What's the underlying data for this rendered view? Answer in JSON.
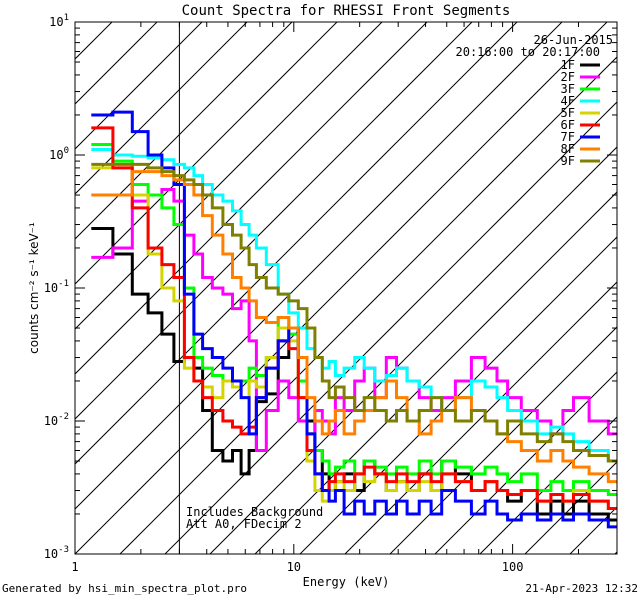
{
  "chart_data": {
    "type": "line",
    "title": "Count Spectra for RHESSI Front Segments",
    "xlabel": "Energy (keV)",
    "ylabel": "counts cm⁻² s⁻¹ keV⁻¹",
    "xscale": "log",
    "yscale": "log",
    "xlim": [
      1.0,
      300.0
    ],
    "ylim": [
      0.001,
      10.0
    ],
    "x_tick_labels": [
      {
        "value": 1,
        "label": "1"
      },
      {
        "value": 10,
        "label": "10"
      },
      {
        "value": 100,
        "label": "100"
      }
    ],
    "y_tick_labels": [
      {
        "value": 0.001,
        "base": "10",
        "exp": "-3"
      },
      {
        "value": 0.01,
        "base": "10",
        "exp": "-2"
      },
      {
        "value": 0.1,
        "base": "10",
        "exp": "-1"
      },
      {
        "value": 1,
        "base": "10",
        "exp": "0"
      },
      {
        "value": 10,
        "base": "10",
        "exp": "1"
      }
    ],
    "date": "26-Jun-2015",
    "time_range": "20:16:00 to 20:17:00",
    "annotation_lines": [
      "Includes Background",
      "Att A0, FDecim 2"
    ],
    "excluded_region": {
      "from": 1.0,
      "to": 3.0
    },
    "energy_bins": [
      1.33,
      1.67,
      2.0,
      2.33,
      2.67,
      3.0,
      3.33,
      3.67,
      4.0,
      4.5,
      5.0,
      5.5,
      6.0,
      6.5,
      7.0,
      8.0,
      9.0,
      10.0,
      11.0,
      12.0,
      13.0,
      14.0,
      15.0,
      16.0,
      18.0,
      20.0,
      22.0,
      25.0,
      28.0,
      31.0,
      35.0,
      40.0,
      45.0,
      50.0,
      60.0,
      70.0,
      80.0,
      90.0,
      100.0,
      120.0,
      140.0,
      160.0,
      180.0,
      200.0,
      250.0,
      300.0
    ],
    "series": [
      {
        "name": "1F",
        "color": "#000000",
        "values": [
          0.28,
          0.18,
          0.09,
          0.065,
          0.045,
          0.028,
          0.03,
          0.025,
          0.012,
          0.006,
          0.005,
          0.006,
          0.004,
          0.006,
          0.014,
          0.016,
          0.03,
          0.05,
          0.03,
          0.01,
          0.006,
          0.004,
          0.003,
          0.0035,
          0.004,
          0.003,
          0.005,
          0.004,
          0.003,
          0.0035,
          0.003,
          0.004,
          0.003,
          0.005,
          0.004,
          0.003,
          0.0035,
          0.003,
          0.0025,
          0.003,
          0.002,
          0.0025,
          0.002,
          0.0025,
          0.002,
          0.0018
        ]
      },
      {
        "name": "2F",
        "color": "#ff00ff",
        "values": [
          0.17,
          0.2,
          0.45,
          0.5,
          0.55,
          0.45,
          0.25,
          0.18,
          0.12,
          0.1,
          0.09,
          0.07,
          0.08,
          0.04,
          0.006,
          0.012,
          0.02,
          0.015,
          0.01,
          0.008,
          0.012,
          0.01,
          0.008,
          0.015,
          0.012,
          0.02,
          0.025,
          0.015,
          0.03,
          0.025,
          0.02,
          0.015,
          0.012,
          0.015,
          0.02,
          0.03,
          0.025,
          0.02,
          0.015,
          0.012,
          0.01,
          0.008,
          0.012,
          0.015,
          0.01,
          0.008
        ]
      },
      {
        "name": "3F",
        "color": "#00ff00",
        "values": [
          1.2,
          0.9,
          0.6,
          0.5,
          0.4,
          0.3,
          0.1,
          0.03,
          0.025,
          0.022,
          0.02,
          0.018,
          0.02,
          0.025,
          0.022,
          0.03,
          0.06,
          0.045,
          0.02,
          0.008,
          0.006,
          0.005,
          0.004,
          0.0045,
          0.005,
          0.004,
          0.005,
          0.0045,
          0.004,
          0.0045,
          0.004,
          0.005,
          0.004,
          0.005,
          0.0045,
          0.004,
          0.0045,
          0.004,
          0.0035,
          0.004,
          0.003,
          0.0035,
          0.003,
          0.0035,
          0.003,
          0.0028
        ]
      },
      {
        "name": "4F",
        "color": "#00ffff",
        "values": [
          1.1,
          1.0,
          0.98,
          0.95,
          0.92,
          0.85,
          0.8,
          0.7,
          0.6,
          0.5,
          0.45,
          0.38,
          0.3,
          0.25,
          0.2,
          0.15,
          0.09,
          0.065,
          0.05,
          0.035,
          0.03,
          0.025,
          0.028,
          0.022,
          0.025,
          0.03,
          0.025,
          0.02,
          0.022,
          0.025,
          0.02,
          0.018,
          0.015,
          0.012,
          0.015,
          0.02,
          0.018,
          0.015,
          0.012,
          0.01,
          0.008,
          0.009,
          0.008,
          0.007,
          0.006,
          0.005
        ]
      },
      {
        "name": "5F",
        "color": "#d4d400",
        "values": [
          0.8,
          0.8,
          0.5,
          0.18,
          0.1,
          0.08,
          0.025,
          0.02,
          0.018,
          0.015,
          0.02,
          0.018,
          0.015,
          0.02,
          0.018,
          0.03,
          0.05,
          0.04,
          0.015,
          0.005,
          0.003,
          0.0025,
          0.003,
          0.0035,
          0.003,
          0.004,
          0.0035,
          0.004,
          0.003,
          0.0035,
          0.003,
          0.0035,
          0.003,
          0.004,
          0.0035,
          0.003,
          0.0035,
          0.003,
          0.0028,
          0.003,
          0.0025,
          0.0028,
          0.0025,
          0.003,
          0.0025,
          0.0022
        ]
      },
      {
        "name": "6F",
        "color": "#ff0000",
        "values": [
          1.6,
          0.8,
          0.4,
          0.2,
          0.15,
          0.12,
          0.03,
          0.02,
          0.015,
          0.012,
          0.01,
          0.009,
          0.008,
          0.009,
          0.015,
          0.025,
          0.04,
          0.035,
          0.015,
          0.006,
          0.004,
          0.003,
          0.0035,
          0.004,
          0.0035,
          0.004,
          0.0045,
          0.004,
          0.0035,
          0.004,
          0.0035,
          0.004,
          0.0035,
          0.004,
          0.0035,
          0.003,
          0.0035,
          0.003,
          0.0028,
          0.003,
          0.0025,
          0.0028,
          0.0025,
          0.0028,
          0.0025,
          0.0022
        ]
      },
      {
        "name": "7F",
        "color": "#0000ff",
        "values": [
          2.0,
          2.1,
          1.5,
          1.0,
          0.8,
          0.6,
          0.09,
          0.045,
          0.035,
          0.03,
          0.025,
          0.02,
          0.015,
          0.008,
          0.015,
          0.025,
          0.04,
          0.05,
          0.03,
          0.008,
          0.004,
          0.003,
          0.0025,
          0.003,
          0.002,
          0.0025,
          0.002,
          0.0025,
          0.002,
          0.0025,
          0.002,
          0.0025,
          0.002,
          0.003,
          0.0025,
          0.002,
          0.0025,
          0.002,
          0.0018,
          0.002,
          0.0018,
          0.002,
          0.0018,
          0.002,
          0.0018,
          0.0016
        ]
      },
      {
        "name": "8F",
        "color": "#ff8000",
        "values": [
          0.5,
          0.5,
          0.75,
          0.75,
          0.7,
          0.65,
          0.6,
          0.5,
          0.35,
          0.25,
          0.18,
          0.12,
          0.1,
          0.08,
          0.06,
          0.055,
          0.06,
          0.05,
          0.03,
          0.015,
          0.01,
          0.008,
          0.01,
          0.012,
          0.008,
          0.01,
          0.012,
          0.015,
          0.02,
          0.015,
          0.01,
          0.008,
          0.01,
          0.012,
          0.015,
          0.012,
          0.01,
          0.008,
          0.007,
          0.006,
          0.005,
          0.006,
          0.005,
          0.0045,
          0.004,
          0.0035
        ]
      },
      {
        "name": "9F",
        "color": "#808000",
        "values": [
          0.85,
          0.85,
          0.85,
          0.8,
          0.75,
          0.7,
          0.65,
          0.6,
          0.5,
          0.4,
          0.3,
          0.25,
          0.2,
          0.15,
          0.12,
          0.1,
          0.09,
          0.08,
          0.07,
          0.05,
          0.03,
          0.02,
          0.015,
          0.018,
          0.015,
          0.012,
          0.015,
          0.012,
          0.01,
          0.012,
          0.01,
          0.012,
          0.015,
          0.012,
          0.01,
          0.012,
          0.01,
          0.008,
          0.01,
          0.008,
          0.007,
          0.008,
          0.007,
          0.006,
          0.0055,
          0.005
        ]
      }
    ]
  },
  "footer": {
    "left": "Generated by hsi_min_spectra_plot.pro",
    "right": "21-Apr-2023 12:32"
  }
}
